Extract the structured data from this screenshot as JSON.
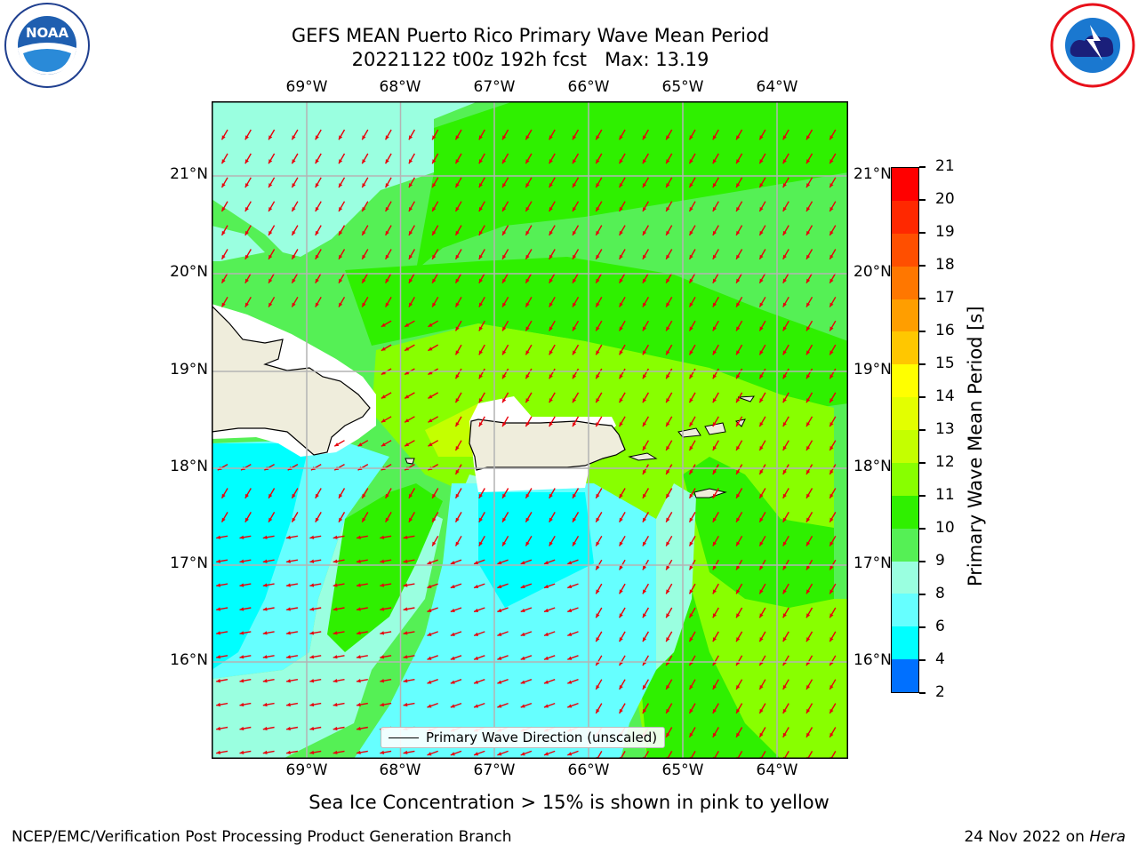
{
  "header": {
    "title_line1": "GEFS MEAN Puerto Rico Primary Wave Mean Period",
    "title_line2": "20221122 t00z 192h fcst   Max: 13.19"
  },
  "logos": {
    "left": "NOAA",
    "right": "NATIONAL WEATHER SERVICE"
  },
  "map": {
    "lon_labels": [
      "69°W",
      "68°W",
      "67°W",
      "66°W",
      "65°W",
      "64°W"
    ],
    "lat_labels": [
      "21°N",
      "20°N",
      "19°N",
      "18°N",
      "17°N",
      "16°N"
    ],
    "arrow_color": "#e8000b",
    "legend_text": "Primary Wave Direction (unscaled)"
  },
  "colorbar": {
    "label": "Primary Wave Mean Period [s]",
    "ticks": [
      "21",
      "20",
      "19",
      "18",
      "17",
      "16",
      "15",
      "14",
      "13",
      "12",
      "11",
      "10",
      "9",
      "8",
      "6",
      "4",
      "2"
    ],
    "colors": [
      "#ff0000",
      "#ff2800",
      "#ff4f00",
      "#ff7700",
      "#ff9e00",
      "#ffc700",
      "#ffff00",
      "#e3ff00",
      "#c4ff00",
      "#88ff00",
      "#2ff000",
      "#55f055",
      "#9affe0",
      "#66ffff",
      "#00ffff",
      "#0070ff",
      "#0000ff"
    ]
  },
  "note": "Sea Ice Concentration > 15% is shown in pink to yellow",
  "footer": {
    "left": "NCEP/EMC/Verification Post Processing Product Generation Branch",
    "right_date": "24 Nov 2022 on",
    "right_host": "Hera"
  }
}
